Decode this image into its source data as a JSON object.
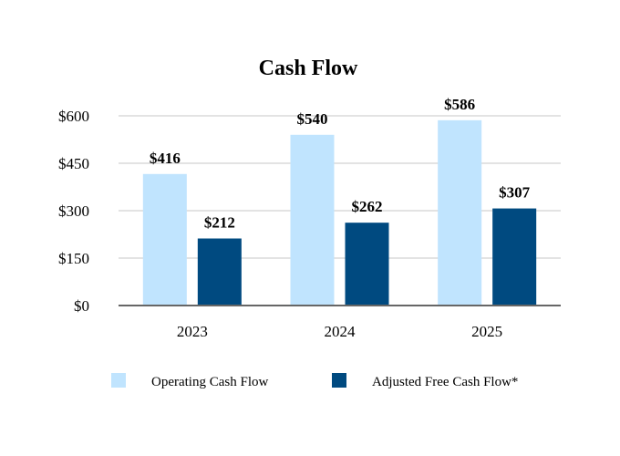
{
  "chart_data": {
    "type": "bar",
    "title": "Cash Flow",
    "xlabel": "",
    "ylabel": "",
    "categories": [
      "2023",
      "2024",
      "2025"
    ],
    "series": [
      {
        "name": "Operating Cash Flow",
        "values": [
          416,
          540,
          586
        ],
        "labels": [
          "$416",
          "$540",
          "$586"
        ],
        "color": "#c0e4fe"
      },
      {
        "name": "Adjusted Free Cash Flow*",
        "values": [
          212,
          262,
          307
        ],
        "labels": [
          "$212",
          "$262",
          "$307"
        ],
        "color": "#004a80"
      }
    ],
    "ylim": [
      0,
      600
    ],
    "yticks": [
      0,
      150,
      300,
      450,
      600
    ],
    "ytick_labels": [
      "$0",
      "$150",
      "$300",
      "$450",
      "$600"
    ],
    "grid": true,
    "legend": "bottom"
  }
}
